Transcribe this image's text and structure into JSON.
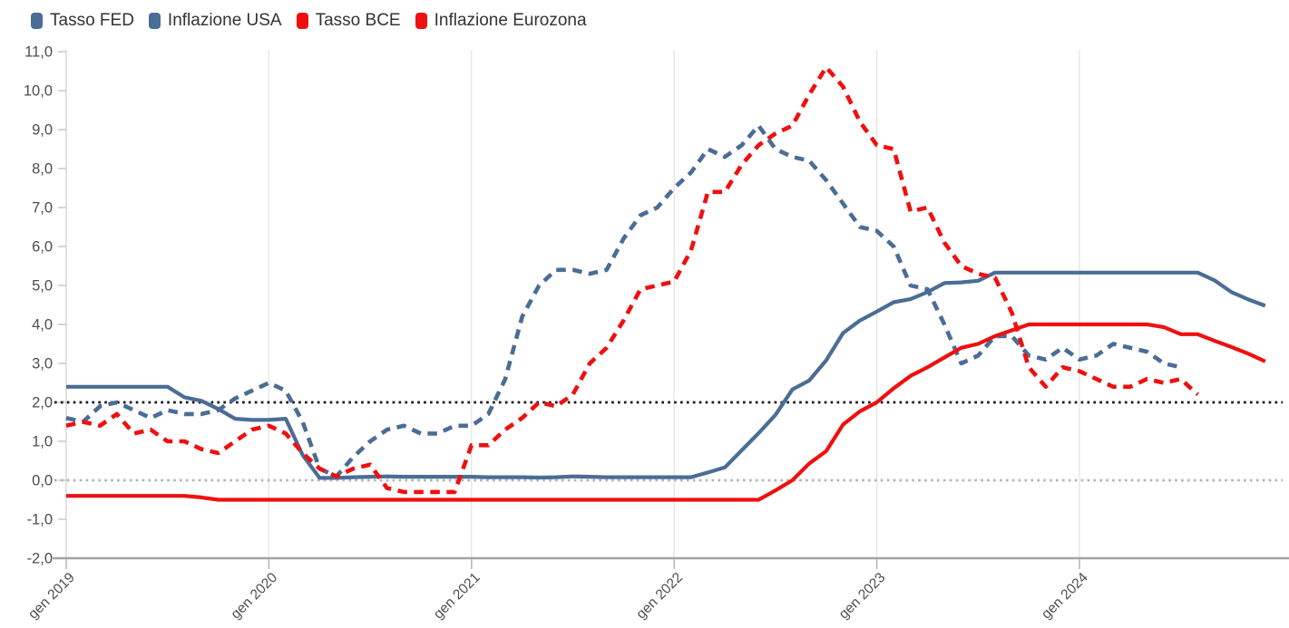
{
  "legend": [
    {
      "label": "Tasso FED",
      "color": "#4a6d96",
      "style": "solid"
    },
    {
      "label": "Inflazione USA",
      "color": "#4a6d96",
      "style": "dashed"
    },
    {
      "label": "Tasso BCE",
      "color": "#ee1010",
      "style": "solid"
    },
    {
      "label": "Inflazione Eurozona",
      "color": "#ee1010",
      "style": "dashed"
    }
  ],
  "chart_data": {
    "type": "line",
    "title": "",
    "x_unit": "months since gen 2019, monthly data",
    "x_tick_labels": [
      "gen 2019",
      "gen 2020",
      "gen 2021",
      "gen 2022",
      "gen 2023",
      "gen 2024"
    ],
    "x_tick_months": [
      0,
      12,
      24,
      36,
      48,
      60
    ],
    "ylim": [
      -2.0,
      11.0
    ],
    "y_tick_step": 1.0,
    "y_tick_labels": [
      "11,0",
      "10,0",
      "9,0",
      "8,0",
      "7,0",
      "6,0",
      "5,0",
      "4,0",
      "3,0",
      "2,0",
      "1,0",
      "0,0",
      "-1,0",
      "-2,0"
    ],
    "decimal_separator": ",",
    "grid": "vertical-yearly",
    "legend_position": "top-left",
    "reference_lines": [
      {
        "value": 2.0,
        "color": "#1a1a1a",
        "style": "dotted",
        "name": "target-2-percent"
      },
      {
        "value": 0.0,
        "color": "#b5b5b5",
        "style": "dotted",
        "name": "zero-line"
      }
    ],
    "axis_colors": {
      "axis_line": "#a3a3a3",
      "gridline": "#e7e7e7",
      "tick": "#c9c9c9",
      "tick_label": "#4d4d4d"
    },
    "series": [
      {
        "name": "Tasso FED",
        "color": "#4a6d96",
        "dashed": false,
        "start_month": 0,
        "values": [
          2.4,
          2.4,
          2.4,
          2.4,
          2.4,
          2.4,
          2.4,
          2.13,
          2.04,
          1.83,
          1.58,
          1.55,
          1.55,
          1.58,
          0.65,
          0.06,
          0.06,
          0.08,
          0.09,
          0.1,
          0.09,
          0.09,
          0.09,
          0.09,
          0.09,
          0.08,
          0.08,
          0.08,
          0.07,
          0.08,
          0.1,
          0.09,
          0.08,
          0.08,
          0.08,
          0.08,
          0.08,
          0.08,
          0.2,
          0.33,
          0.77,
          1.21,
          1.68,
          2.33,
          2.56,
          3.08,
          3.78,
          4.1,
          4.33,
          4.57,
          4.65,
          4.83,
          5.06,
          5.08,
          5.12,
          5.33,
          5.33,
          5.33,
          5.33,
          5.33,
          5.33,
          5.33,
          5.33,
          5.33,
          5.33,
          5.33,
          5.33,
          5.33,
          5.13,
          4.83,
          4.64,
          4.48
        ]
      },
      {
        "name": "Inflazione USA",
        "color": "#4a6d96",
        "dashed": true,
        "start_month": 0,
        "values": [
          1.6,
          1.5,
          1.9,
          2.0,
          1.8,
          1.6,
          1.8,
          1.7,
          1.7,
          1.8,
          2.1,
          2.3,
          2.5,
          2.3,
          1.5,
          0.3,
          0.1,
          0.6,
          1.0,
          1.3,
          1.4,
          1.2,
          1.2,
          1.4,
          1.4,
          1.7,
          2.6,
          4.2,
          5.0,
          5.4,
          5.4,
          5.3,
          5.4,
          6.2,
          6.8,
          7.0,
          7.5,
          7.9,
          8.5,
          8.3,
          8.6,
          9.1,
          8.5,
          8.3,
          8.2,
          7.7,
          7.1,
          6.5,
          6.4,
          6.0,
          5.0,
          4.9,
          4.0,
          3.0,
          3.2,
          3.7,
          3.7,
          3.2,
          3.1,
          3.4,
          3.1,
          3.2,
          3.5,
          3.4,
          3.3,
          3.0,
          2.9
        ]
      },
      {
        "name": "Tasso BCE",
        "color": "#ee1010",
        "dashed": false,
        "start_month": 0,
        "values": [
          -0.4,
          -0.4,
          -0.4,
          -0.4,
          -0.4,
          -0.4,
          -0.4,
          -0.4,
          -0.44,
          -0.5,
          -0.5,
          -0.5,
          -0.5,
          -0.5,
          -0.5,
          -0.5,
          -0.5,
          -0.5,
          -0.5,
          -0.5,
          -0.5,
          -0.5,
          -0.5,
          -0.5,
          -0.5,
          -0.5,
          -0.5,
          -0.5,
          -0.5,
          -0.5,
          -0.5,
          -0.5,
          -0.5,
          -0.5,
          -0.5,
          -0.5,
          -0.5,
          -0.5,
          -0.5,
          -0.5,
          -0.5,
          -0.5,
          -0.26,
          0.0,
          0.43,
          0.75,
          1.43,
          1.77,
          2.0,
          2.36,
          2.68,
          2.9,
          3.15,
          3.4,
          3.5,
          3.7,
          3.85,
          4.0,
          4.0,
          4.0,
          4.0,
          4.0,
          4.0,
          4.0,
          4.0,
          3.93,
          3.75,
          3.75,
          3.58,
          3.42,
          3.25,
          3.05
        ]
      },
      {
        "name": "Inflazione Eurozona",
        "color": "#ee1010",
        "dashed": true,
        "start_month": 0,
        "values": [
          1.4,
          1.5,
          1.4,
          1.7,
          1.2,
          1.3,
          1.0,
          1.0,
          0.8,
          0.7,
          1.0,
          1.3,
          1.4,
          1.2,
          0.7,
          0.3,
          0.1,
          0.3,
          0.4,
          -0.2,
          -0.3,
          -0.3,
          -0.3,
          -0.3,
          0.9,
          0.9,
          1.3,
          1.6,
          2.0,
          1.9,
          2.2,
          3.0,
          3.4,
          4.1,
          4.9,
          5.0,
          5.1,
          5.9,
          7.4,
          7.4,
          8.1,
          8.6,
          8.9,
          9.1,
          9.9,
          10.6,
          10.1,
          9.2,
          8.6,
          8.5,
          6.9,
          7.0,
          6.1,
          5.5,
          5.3,
          5.2,
          4.3,
          2.9,
          2.4,
          2.9,
          2.8,
          2.6,
          2.4,
          2.4,
          2.6,
          2.5,
          2.6,
          2.2
        ]
      }
    ]
  }
}
